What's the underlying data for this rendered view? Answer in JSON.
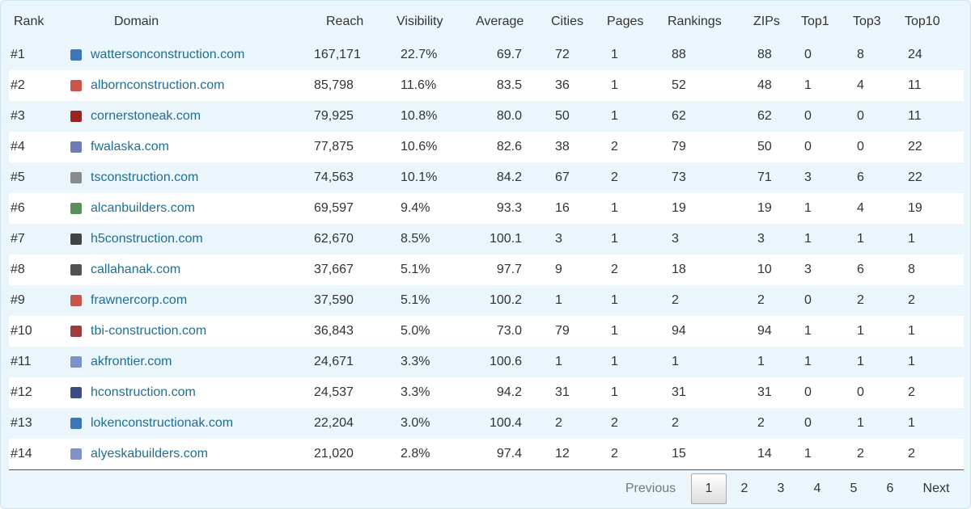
{
  "table": {
    "headers": [
      "Rank",
      "Domain",
      "Reach",
      "Visibility",
      "Average",
      "Cities",
      "Pages",
      "Rankings",
      "ZIPs",
      "Top1",
      "Top3",
      "Top10"
    ],
    "rows": [
      [
        "#1",
        "wattersonconstruction.com",
        "167,171",
        "22.7%",
        "69.7",
        "72",
        "1",
        "88",
        "88",
        "0",
        "8",
        "24"
      ],
      [
        "#2",
        "albornconstruction.com",
        "85,798",
        "11.6%",
        "83.5",
        "36",
        "1",
        "52",
        "48",
        "1",
        "4",
        "11"
      ],
      [
        "#3",
        "cornerstoneak.com",
        "79,925",
        "10.8%",
        "80.0",
        "50",
        "1",
        "62",
        "62",
        "0",
        "0",
        "11"
      ],
      [
        "#4",
        "fwalaska.com",
        "77,875",
        "10.6%",
        "82.6",
        "38",
        "2",
        "79",
        "50",
        "0",
        "0",
        "22"
      ],
      [
        "#5",
        "tsconstruction.com",
        "74,563",
        "10.1%",
        "84.2",
        "67",
        "2",
        "73",
        "71",
        "3",
        "6",
        "22"
      ],
      [
        "#6",
        "alcanbuilders.com",
        "69,597",
        "9.4%",
        "93.3",
        "16",
        "1",
        "19",
        "19",
        "1",
        "4",
        "19"
      ],
      [
        "#7",
        "h5construction.com",
        "62,670",
        "8.5%",
        "100.1",
        "3",
        "1",
        "3",
        "3",
        "1",
        "1",
        "1"
      ],
      [
        "#8",
        "callahanak.com",
        "37,667",
        "5.1%",
        "97.7",
        "9",
        "2",
        "18",
        "10",
        "3",
        "6",
        "8"
      ],
      [
        "#9",
        "frawnercorp.com",
        "37,590",
        "5.1%",
        "100.2",
        "1",
        "1",
        "2",
        "2",
        "0",
        "2",
        "2"
      ],
      [
        "#10",
        "tbi-construction.com",
        "36,843",
        "5.0%",
        "73.0",
        "79",
        "1",
        "94",
        "94",
        "1",
        "1",
        "1"
      ],
      [
        "#11",
        "akfrontier.com",
        "24,671",
        "3.3%",
        "100.6",
        "1",
        "1",
        "1",
        "1",
        "1",
        "1",
        "1"
      ],
      [
        "#12",
        "hconstruction.com",
        "24,537",
        "3.3%",
        "94.2",
        "31",
        "1",
        "31",
        "31",
        "0",
        "0",
        "2"
      ],
      [
        "#13",
        "lokenconstructionak.com",
        "22,204",
        "3.0%",
        "100.4",
        "2",
        "2",
        "2",
        "2",
        "0",
        "1",
        "1"
      ],
      [
        "#14",
        "alyeskabuilders.com",
        "21,020",
        "2.8%",
        "97.4",
        "12",
        "2",
        "15",
        "14",
        "1",
        "2",
        "2"
      ]
    ]
  },
  "pagination": {
    "previous": "Previous",
    "pages": [
      "1",
      "2",
      "3",
      "4",
      "5",
      "6"
    ],
    "next": "Next"
  }
}
